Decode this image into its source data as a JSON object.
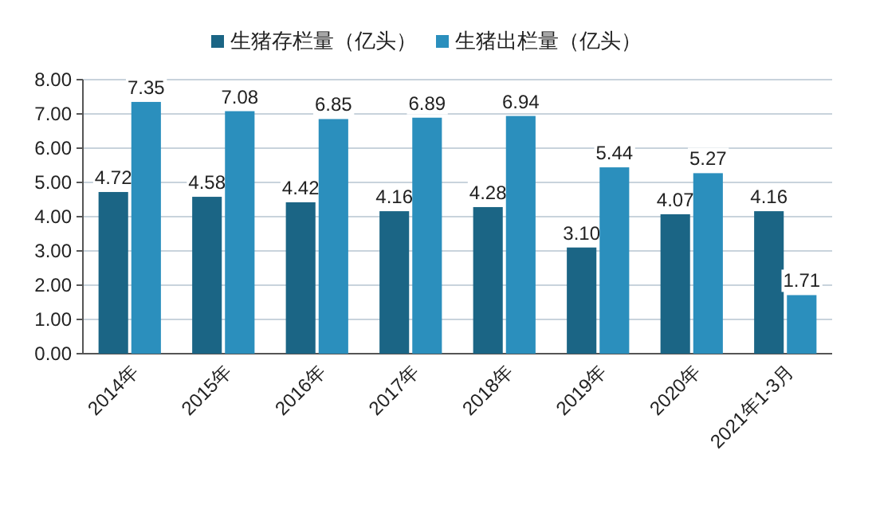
{
  "chart_data": {
    "type": "bar",
    "categories": [
      "2014年",
      "2015年",
      "2016年",
      "2017年",
      "2018年",
      "2019年",
      "2020年",
      "2021年1-3月"
    ],
    "series": [
      {
        "name": "生猪存栏量（亿头）",
        "color": "#1b6585",
        "values": [
          4.72,
          4.58,
          4.42,
          4.16,
          4.28,
          3.1,
          4.07,
          4.16
        ],
        "value_labels": [
          "4.72",
          "4.58",
          "4.42",
          "4.16",
          "4.28",
          "3.10",
          "4.07",
          "4.16"
        ]
      },
      {
        "name": "生猪出栏量（亿头）",
        "color": "#2b8fbd",
        "values": [
          7.35,
          7.08,
          6.85,
          6.89,
          6.94,
          5.44,
          5.27,
          1.71
        ],
        "value_labels": [
          "7.35",
          "7.08",
          "6.85",
          "6.89",
          "6.94",
          "5.44",
          "5.27",
          "1.71"
        ]
      }
    ],
    "ylim": [
      0,
      8
    ],
    "yticks": [
      {
        "value": 0,
        "label": "0.00"
      },
      {
        "value": 1,
        "label": "1.00"
      },
      {
        "value": 2,
        "label": "2.00"
      },
      {
        "value": 3,
        "label": "3.00"
      },
      {
        "value": 4,
        "label": "4.00"
      },
      {
        "value": 5,
        "label": "5.00"
      },
      {
        "value": 6,
        "label": "6.00"
      },
      {
        "value": 7,
        "label": "7.00"
      },
      {
        "value": 8,
        "label": "8.00"
      }
    ],
    "grid": "y",
    "legend": "top"
  }
}
